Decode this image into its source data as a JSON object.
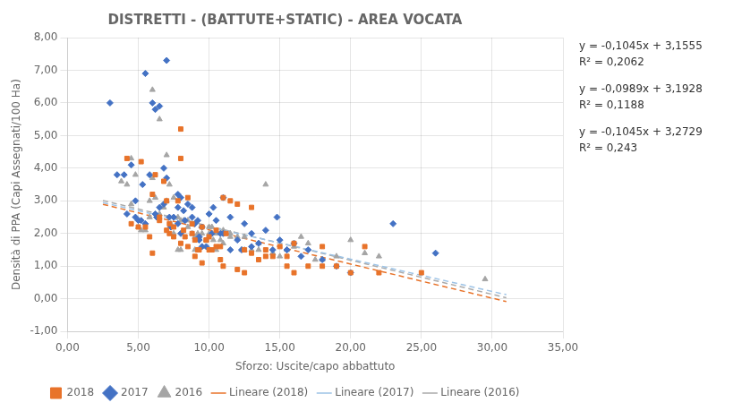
{
  "chart_data": {
    "type": "scatter",
    "title": "DISTRETTI - (BATTUTE+STATIC) - AREA VOCATA",
    "x_label": "Sforzo: Uscite/capo abbattuto",
    "y_label": "Densità di PPA (Capi Assegnati/100 Ha)",
    "xlim": [
      0,
      35
    ],
    "ylim": [
      -1,
      8
    ],
    "xticks": [
      {
        "value": 0,
        "label": "0,00"
      },
      {
        "value": 5,
        "label": "5,00"
      },
      {
        "value": 10,
        "label": "10,00"
      },
      {
        "value": 15,
        "label": "15,00"
      },
      {
        "value": 20,
        "label": "20,00"
      },
      {
        "value": 25,
        "label": "25,00"
      },
      {
        "value": 30,
        "label": "30,00"
      },
      {
        "value": 35,
        "label": "35,00"
      }
    ],
    "yticks": [
      {
        "value": -1,
        "label": "-1,00"
      },
      {
        "value": 0,
        "label": "0,00"
      },
      {
        "value": 1,
        "label": "1,00"
      },
      {
        "value": 2,
        "label": "2,00"
      },
      {
        "value": 3,
        "label": "3,00"
      },
      {
        "value": 4,
        "label": "4,00"
      },
      {
        "value": 5,
        "label": "5,00"
      },
      {
        "value": 6,
        "label": "6,00"
      },
      {
        "value": 7,
        "label": "7,00"
      },
      {
        "value": 8,
        "label": "8,00"
      }
    ],
    "grid": true,
    "legend": "bottom",
    "annotations": [
      "y = -0,1045x + 3,1555",
      "R² = 0,2062",
      "y = -0,0989x + 3,1928",
      "R² = 0,1188",
      "y = -0,1045x + 3,2729",
      "R² = 0,243"
    ],
    "series": [
      {
        "name": "2018",
        "type": "scatter",
        "color": "#E8732A",
        "marker": "square",
        "x": [
          4.2,
          4.5,
          5.0,
          5.2,
          5.5,
          5.8,
          6.0,
          6.2,
          6.5,
          6.8,
          7.0,
          7.2,
          7.5,
          7.8,
          8.0,
          8.0,
          8.2,
          8.5,
          8.8,
          9.0,
          9.2,
          9.5,
          9.8,
          10.0,
          10.2,
          10.5,
          10.8,
          11.0,
          11.5,
          12.0,
          12.5,
          13.0,
          13.5,
          14.0,
          14.5,
          15.0,
          15.5,
          16.0,
          17.0,
          18.0,
          19.0,
          20.0,
          21.0,
          22.0,
          25.0,
          6.5,
          7.2,
          8.5,
          9.5,
          10.5,
          7.0,
          8.0,
          9.0,
          10.0,
          11.0,
          12.0,
          14.0,
          16.0,
          18.0,
          6.0,
          7.5,
          8.8,
          9.3,
          10.8,
          12.5,
          15.5,
          13.0,
          11.2,
          8.3,
          9.8
        ],
        "values": [
          4.3,
          2.3,
          2.2,
          4.2,
          2.2,
          1.9,
          1.4,
          3.8,
          2.5,
          3.6,
          3.0,
          2.0,
          1.9,
          3.0,
          4.3,
          5.2,
          2.1,
          3.1,
          2.3,
          1.8,
          1.5,
          2.2,
          1.8,
          1.9,
          1.5,
          2.1,
          1.6,
          3.1,
          3.0,
          2.9,
          1.5,
          1.4,
          1.2,
          1.5,
          1.3,
          1.6,
          1.0,
          1.7,
          1.0,
          1.6,
          1.0,
          0.8,
          1.6,
          0.8,
          0.8,
          2.4,
          2.3,
          1.6,
          1.1,
          1.6,
          2.1,
          1.7,
          1.3,
          1.5,
          1.0,
          0.9,
          1.3,
          0.8,
          1.0,
          3.2,
          2.2,
          2.0,
          1.5,
          1.2,
          0.8,
          1.3,
          2.8,
          2.0,
          1.9,
          1.8
        ]
      },
      {
        "name": "2017",
        "type": "scatter",
        "color": "#4472C4",
        "marker": "diamond",
        "x": [
          3.0,
          3.5,
          4.0,
          4.2,
          4.5,
          4.8,
          5.0,
          5.2,
          5.5,
          5.8,
          6.0,
          6.2,
          6.5,
          6.5,
          6.8,
          7.0,
          7.0,
          7.2,
          7.5,
          7.8,
          7.8,
          8.0,
          8.2,
          8.5,
          8.8,
          9.0,
          9.2,
          9.5,
          9.8,
          10.0,
          10.2,
          10.5,
          10.8,
          11.0,
          11.5,
          12.0,
          12.5,
          13.0,
          13.5,
          14.0,
          14.5,
          15.0,
          15.5,
          16.0,
          16.5,
          17.0,
          18.0,
          19.0,
          20.0,
          23.0,
          26.0,
          6.2,
          7.3,
          8.3,
          9.3,
          5.3,
          8.8,
          10.3,
          12.3,
          14.8,
          4.8,
          6.3,
          7.8,
          9.3,
          11.0,
          13.0,
          15.5,
          5.5,
          6.8,
          8.0,
          9.5,
          11.5
        ],
        "values": [
          6.0,
          3.8,
          3.8,
          2.6,
          4.1,
          2.5,
          2.4,
          2.4,
          2.3,
          3.8,
          6.0,
          5.8,
          5.9,
          2.8,
          4.0,
          7.3,
          3.7,
          2.5,
          2.5,
          2.8,
          3.2,
          3.1,
          2.7,
          2.9,
          2.8,
          2.3,
          2.4,
          2.2,
          1.6,
          2.6,
          2.0,
          2.4,
          2.0,
          3.1,
          2.5,
          1.8,
          2.3,
          2.0,
          1.7,
          2.1,
          1.5,
          1.8,
          1.5,
          1.7,
          1.3,
          1.5,
          1.2,
          1.0,
          0.8,
          2.3,
          1.4,
          2.6,
          2.2,
          2.4,
          1.9,
          3.5,
          2.5,
          2.8,
          1.5,
          2.5,
          3.0,
          2.5,
          2.3,
          1.8,
          2.0,
          1.6,
          1.5,
          6.9,
          2.9,
          2.0,
          1.6,
          1.5
        ]
      },
      {
        "name": "2016",
        "type": "scatter",
        "color": "#A5A5A5",
        "marker": "triangle",
        "x": [
          3.8,
          4.2,
          4.5,
          4.8,
          5.0,
          5.2,
          5.5,
          5.8,
          6.0,
          6.2,
          6.5,
          6.8,
          7.0,
          7.2,
          7.5,
          7.8,
          8.0,
          8.2,
          8.5,
          8.8,
          9.0,
          9.2,
          9.5,
          9.8,
          10.0,
          10.2,
          10.5,
          10.8,
          11.0,
          11.5,
          12.0,
          12.5,
          13.0,
          13.5,
          14.0,
          14.5,
          15.0,
          15.5,
          16.0,
          16.5,
          17.0,
          17.5,
          18.0,
          19.0,
          20.0,
          21.0,
          22.0,
          29.5,
          6.5,
          7.5,
          8.5,
          9.5,
          10.5,
          7.0,
          8.0,
          9.0,
          10.0,
          11.0,
          12.5,
          14.5,
          4.5,
          6.0,
          7.8,
          9.3,
          11.5,
          13.5,
          5.8,
          7.3,
          8.8,
          10.3,
          12.3
        ],
        "values": [
          3.6,
          3.5,
          2.9,
          3.8,
          2.2,
          2.1,
          2.1,
          2.5,
          6.4,
          3.1,
          5.5,
          2.8,
          3.0,
          3.5,
          3.1,
          2.5,
          2.4,
          2.4,
          2.2,
          2.0,
          1.9,
          2.0,
          2.0,
          1.8,
          2.2,
          2.2,
          2.0,
          1.8,
          1.7,
          2.0,
          1.9,
          1.9,
          1.5,
          1.7,
          3.5,
          1.4,
          1.3,
          1.5,
          1.6,
          1.9,
          1.7,
          1.2,
          1.2,
          1.3,
          1.8,
          1.4,
          1.3,
          0.6,
          2.6,
          2.0,
          2.4,
          1.6,
          1.5,
          4.4,
          1.5,
          1.5,
          2.0,
          2.1,
          1.5,
          1.4,
          4.3,
          3.7,
          1.5,
          1.9,
          1.9,
          1.5,
          3.0,
          2.3,
          2.3,
          1.8,
          1.5
        ]
      },
      {
        "name": "Lineare (2018)",
        "type": "line",
        "color": "#E8732A",
        "line_style": "dashed",
        "x": [
          2.5,
          31
        ],
        "values": [
          2.89425,
          -0.084
        ]
      },
      {
        "name": "Lineare (2017)",
        "type": "line",
        "color": "#9DC3E6",
        "line_style": "dashed",
        "x": [
          2.5,
          31
        ],
        "values": [
          2.94555,
          0.1269
        ]
      },
      {
        "name": "Lineare (2016)",
        "type": "line",
        "color": "#AAAAAA",
        "line_style": "dashed",
        "x": [
          2.5,
          31
        ],
        "values": [
          3.01165,
          0.0334
        ]
      }
    ]
  }
}
